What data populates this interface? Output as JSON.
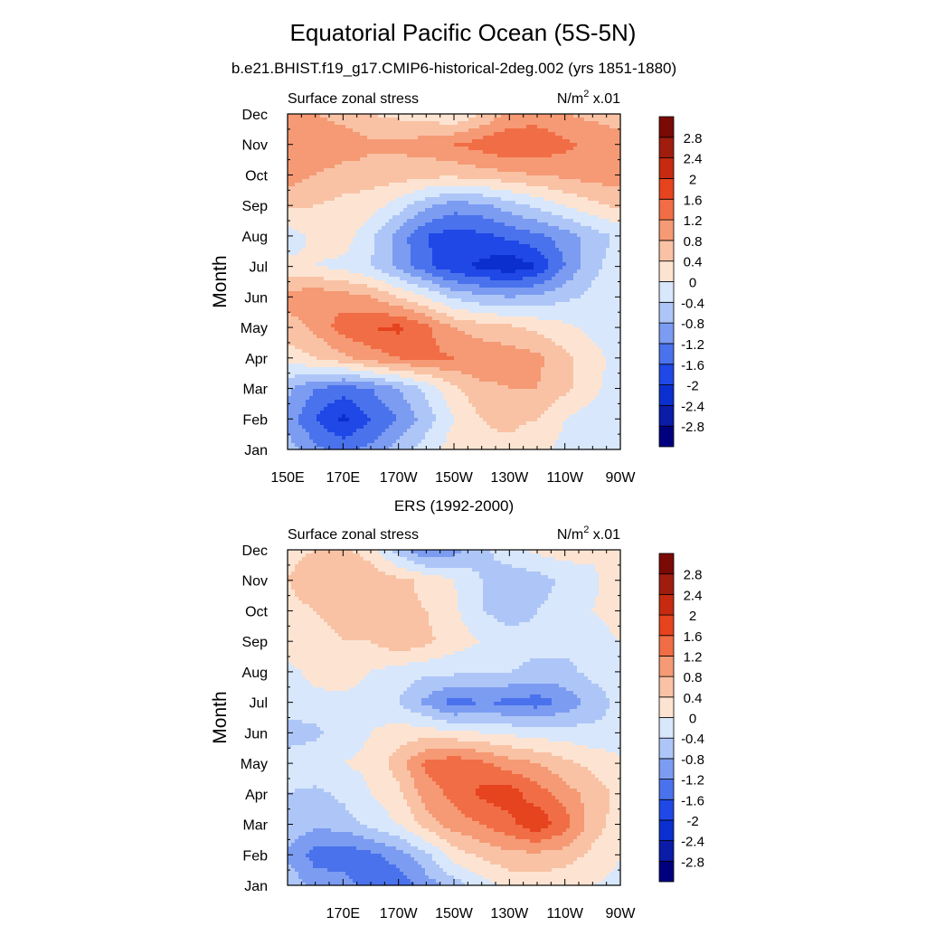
{
  "figure": {
    "title": "Equatorial Pacific Ocean (5S-5N)",
    "subtitle": "b.e21.BHIST.f19_g17.CMIP6-historical-2deg.002 (yrs 1851-1880)"
  },
  "palette": {
    "levels": [
      -2.8,
      -2.4,
      -2.0,
      -1.6,
      -1.2,
      -0.8,
      -0.4,
      0,
      0.4,
      0.8,
      1.2,
      1.6,
      2.0,
      2.4,
      2.8
    ],
    "level_labels": [
      "-2.8",
      "-2.4",
      "-2",
      "-1.6",
      "-1.2",
      "-0.8",
      "-0.4",
      "0",
      "0.4",
      "0.8",
      "1.2",
      "1.6",
      "2",
      "2.4",
      "2.8"
    ],
    "colors": [
      "#00007e",
      "#0a1ca8",
      "#0b2fcf",
      "#1f48e6",
      "#4a72ec",
      "#7c9cf2",
      "#aec6f7",
      "#d8e7fb",
      "#fde4d2",
      "#f9c2a5",
      "#f59a74",
      "#f16d45",
      "#e6431f",
      "#c62b12",
      "#a01d0e",
      "#7a0a05"
    ]
  },
  "chart_data": [
    {
      "type": "heatmap",
      "title": "b.e21.BHIST.f19_g17.CMIP6-historical-2deg.002 (yrs 1851-1880)",
      "left_label": "Surface zonal stress",
      "right_label": "N/m",
      "units_sup": "2",
      "units_scale": " x.01",
      "ylabel": "Month",
      "xlabel": "",
      "x": [
        150,
        160,
        170,
        180,
        190,
        200,
        210,
        220,
        230,
        240,
        250,
        260,
        270
      ],
      "xlim": [
        150,
        270
      ],
      "xticks": [
        150,
        170,
        190,
        210,
        230,
        250,
        270
      ],
      "xtick_labels": [
        "150E",
        "170E",
        "170W",
        "150W",
        "130W",
        "110W",
        "90W"
      ],
      "y": [
        "Jan",
        "Feb",
        "Mar",
        "Apr",
        "May",
        "Jun",
        "Jul",
        "Aug",
        "Sep",
        "Oct",
        "Nov",
        "Dec"
      ],
      "ylim": [
        "Jan",
        "Dec"
      ],
      "z": [
        [
          -0.6,
          -1.1,
          -1.3,
          -1.1,
          -0.6,
          -0.2,
          0.2,
          0.3,
          0.3,
          0.1,
          -0.1,
          -0.2,
          -0.3
        ],
        [
          -1.0,
          -1.6,
          -2.1,
          -1.6,
          -1.2,
          -0.6,
          0.0,
          0.4,
          0.5,
          0.4,
          0.0,
          -0.2,
          -0.3
        ],
        [
          -0.7,
          -1.2,
          -1.4,
          -1.2,
          -0.8,
          -0.3,
          0.3,
          0.7,
          0.8,
          0.8,
          0.5,
          0.1,
          -0.2
        ],
        [
          0.2,
          0.4,
          0.7,
          1.0,
          1.2,
          1.3,
          1.2,
          1.1,
          1.0,
          0.9,
          0.5,
          0.1,
          -0.1
        ],
        [
          0.6,
          0.9,
          1.4,
          1.6,
          1.7,
          1.3,
          0.8,
          0.6,
          0.5,
          0.3,
          0.1,
          -0.1,
          -0.2
        ],
        [
          1.0,
          1.1,
          1.0,
          0.8,
          0.4,
          0.0,
          -0.5,
          -0.7,
          -0.8,
          -0.7,
          -0.5,
          -0.3,
          -0.2
        ],
        [
          0.1,
          0.0,
          -0.1,
          -0.4,
          -0.9,
          -1.5,
          -1.9,
          -2.1,
          -2.3,
          -2.0,
          -1.2,
          -0.5,
          -0.2
        ],
        [
          -0.2,
          0.1,
          0.2,
          -0.3,
          -1.0,
          -1.6,
          -1.8,
          -1.7,
          -1.5,
          -1.3,
          -1.0,
          -0.6,
          -0.3
        ],
        [
          0.5,
          0.4,
          0.3,
          0.2,
          -0.2,
          -0.7,
          -1.0,
          -0.9,
          -0.6,
          -0.3,
          0.0,
          0.3,
          0.5
        ],
        [
          1.0,
          0.8,
          0.6,
          0.6,
          0.6,
          0.5,
          0.5,
          0.6,
          0.7,
          0.8,
          0.9,
          1.0,
          1.0
        ],
        [
          1.0,
          1.2,
          1.1,
          0.9,
          0.9,
          1.0,
          1.2,
          1.4,
          1.6,
          1.5,
          1.3,
          1.1,
          1.0
        ],
        [
          0.8,
          0.8,
          0.6,
          0.4,
          0.3,
          0.2,
          0.0,
          0.4,
          0.9,
          1.0,
          0.8,
          0.7,
          0.6
        ]
      ]
    },
    {
      "type": "heatmap",
      "title": "ERS (1992-2000)",
      "left_label": "Surface zonal stress",
      "right_label": "N/m",
      "units_sup": "2",
      "units_scale": " x.01",
      "ylabel": "Month",
      "xlabel": "",
      "x": [
        150,
        160,
        170,
        180,
        190,
        200,
        210,
        220,
        230,
        240,
        250,
        260,
        270
      ],
      "xlim": [
        150,
        270
      ],
      "xticks": [
        170,
        190,
        210,
        230,
        250,
        270
      ],
      "xtick_labels": [
        "170E",
        "170W",
        "150W",
        "130W",
        "110W",
        "90W"
      ],
      "y": [
        "Jan",
        "Feb",
        "Mar",
        "Apr",
        "May",
        "Jun",
        "Jul",
        "Aug",
        "Sep",
        "Oct",
        "Nov",
        "Dec"
      ],
      "ylim": [
        "Jan",
        "Dec"
      ],
      "z": [
        [
          -0.5,
          -0.9,
          -1.0,
          -1.4,
          -1.5,
          -1.0,
          -0.6,
          -0.2,
          0.1,
          0.2,
          0.1,
          0.0,
          -0.1
        ],
        [
          -0.9,
          -1.4,
          -1.5,
          -1.3,
          -1.0,
          -0.5,
          0.2,
          0.5,
          0.7,
          0.7,
          0.6,
          0.3,
          0.0
        ],
        [
          -0.5,
          -0.7,
          -0.6,
          -0.3,
          0.0,
          0.6,
          1.0,
          1.2,
          1.5,
          1.9,
          1.4,
          0.6,
          0.2
        ],
        [
          -0.4,
          -0.5,
          -0.3,
          0.0,
          0.3,
          1.0,
          1.3,
          1.7,
          1.8,
          1.4,
          1.0,
          0.6,
          0.3
        ],
        [
          -0.2,
          -0.1,
          0.0,
          0.1,
          0.6,
          1.3,
          1.5,
          1.3,
          1.0,
          0.8,
          0.5,
          0.3,
          0.1
        ],
        [
          -0.6,
          -0.5,
          -0.2,
          0.0,
          0.2,
          0.2,
          0.1,
          0.0,
          -0.1,
          -0.2,
          -0.2,
          -0.3,
          -0.3
        ],
        [
          -0.2,
          -0.1,
          -0.1,
          -0.2,
          -0.4,
          -0.9,
          -1.4,
          -1.2,
          -1.3,
          -1.4,
          -1.1,
          -0.6,
          -0.3
        ],
        [
          -0.1,
          0.1,
          0.2,
          0.0,
          -0.2,
          -0.3,
          -0.3,
          -0.4,
          -0.4,
          -0.5,
          -0.5,
          -0.3,
          -0.2
        ],
        [
          0.2,
          0.3,
          0.4,
          0.4,
          0.7,
          0.5,
          0.2,
          0.0,
          -0.2,
          -0.3,
          -0.3,
          -0.2,
          0.0
        ],
        [
          0.3,
          0.4,
          0.5,
          0.6,
          0.5,
          0.4,
          0.1,
          -0.4,
          -0.6,
          -0.4,
          -0.2,
          0.0,
          0.2
        ],
        [
          0.4,
          0.6,
          0.8,
          0.7,
          0.5,
          0.3,
          0.0,
          -0.4,
          -0.6,
          -0.6,
          -0.3,
          -0.1,
          0.3
        ],
        [
          0.3,
          0.4,
          0.5,
          0.2,
          -0.6,
          -1.2,
          -1.0,
          -0.5,
          -0.2,
          0.1,
          0.2,
          0.1,
          0.0
        ]
      ]
    }
  ]
}
